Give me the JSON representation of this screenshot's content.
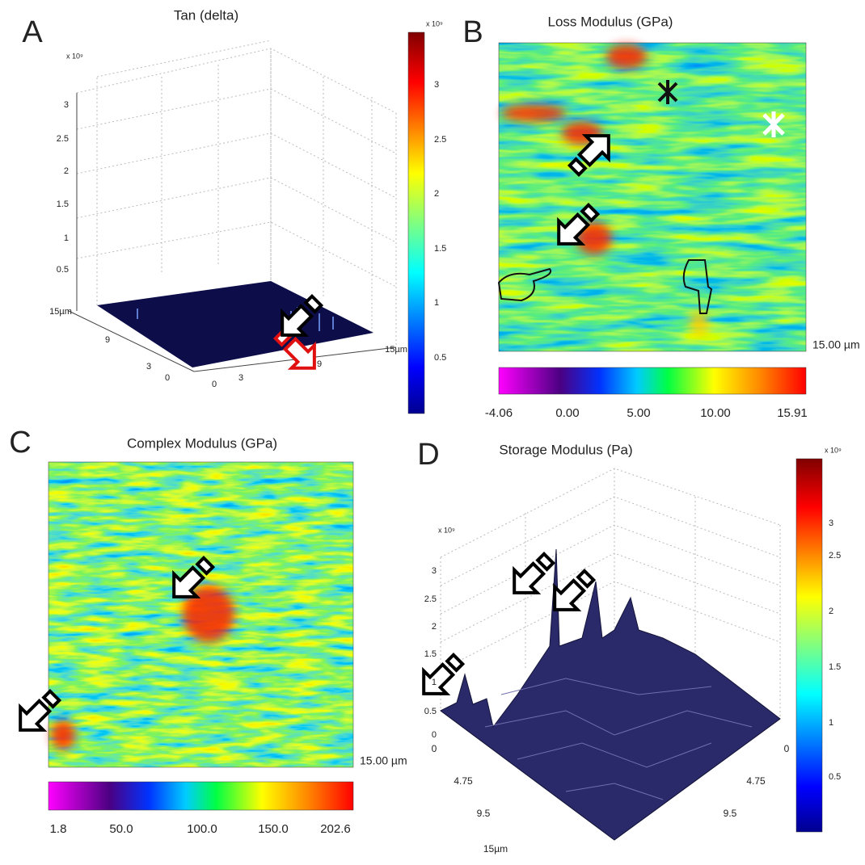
{
  "panels": [
    {
      "letter": "A",
      "title": "Tan (delta)",
      "multiplier": "x 10⁹",
      "colorbar_multiplier": "x 10⁹",
      "z_ticks": [
        "0.5",
        "1",
        "1.5",
        "2",
        "2.5",
        "3"
      ],
      "colorbar_ticks": [
        "0.5",
        "1",
        "1.5",
        "2",
        "2.5",
        "3"
      ],
      "x_ticks": [
        "0",
        "3",
        "9",
        "15µm"
      ],
      "y_ticks": [
        "0",
        "3",
        "9",
        "15µm"
      ]
    },
    {
      "letter": "B",
      "title": "Loss Modulus (GPa)",
      "scale_label": "15.00 µm",
      "colorbar_ticks": [
        "-4.06",
        "0.00",
        "5.00",
        "10.00",
        "15.91"
      ]
    },
    {
      "letter": "C",
      "title": "Complex Modulus (GPa)",
      "scale_label": "15.00 µm",
      "colorbar_ticks": [
        "1.8",
        "50.0",
        "100.0",
        "150.0",
        "202.6"
      ]
    },
    {
      "letter": "D",
      "title": "Storage Modulus (Pa)",
      "multiplier": "x 10⁹",
      "colorbar_multiplier": "x 10⁹",
      "z_ticks": [
        "0",
        "0.5",
        "1",
        "1.5",
        "2",
        "2.5",
        "3"
      ],
      "colorbar_ticks": [
        "0.5",
        "1",
        "1.5",
        "2",
        "2.5",
        "3"
      ],
      "x_ticks": [
        "0",
        "4.75",
        "9.5",
        "15µm"
      ],
      "y_ticks": [
        "0",
        "4.75",
        "9.5"
      ]
    }
  ]
}
